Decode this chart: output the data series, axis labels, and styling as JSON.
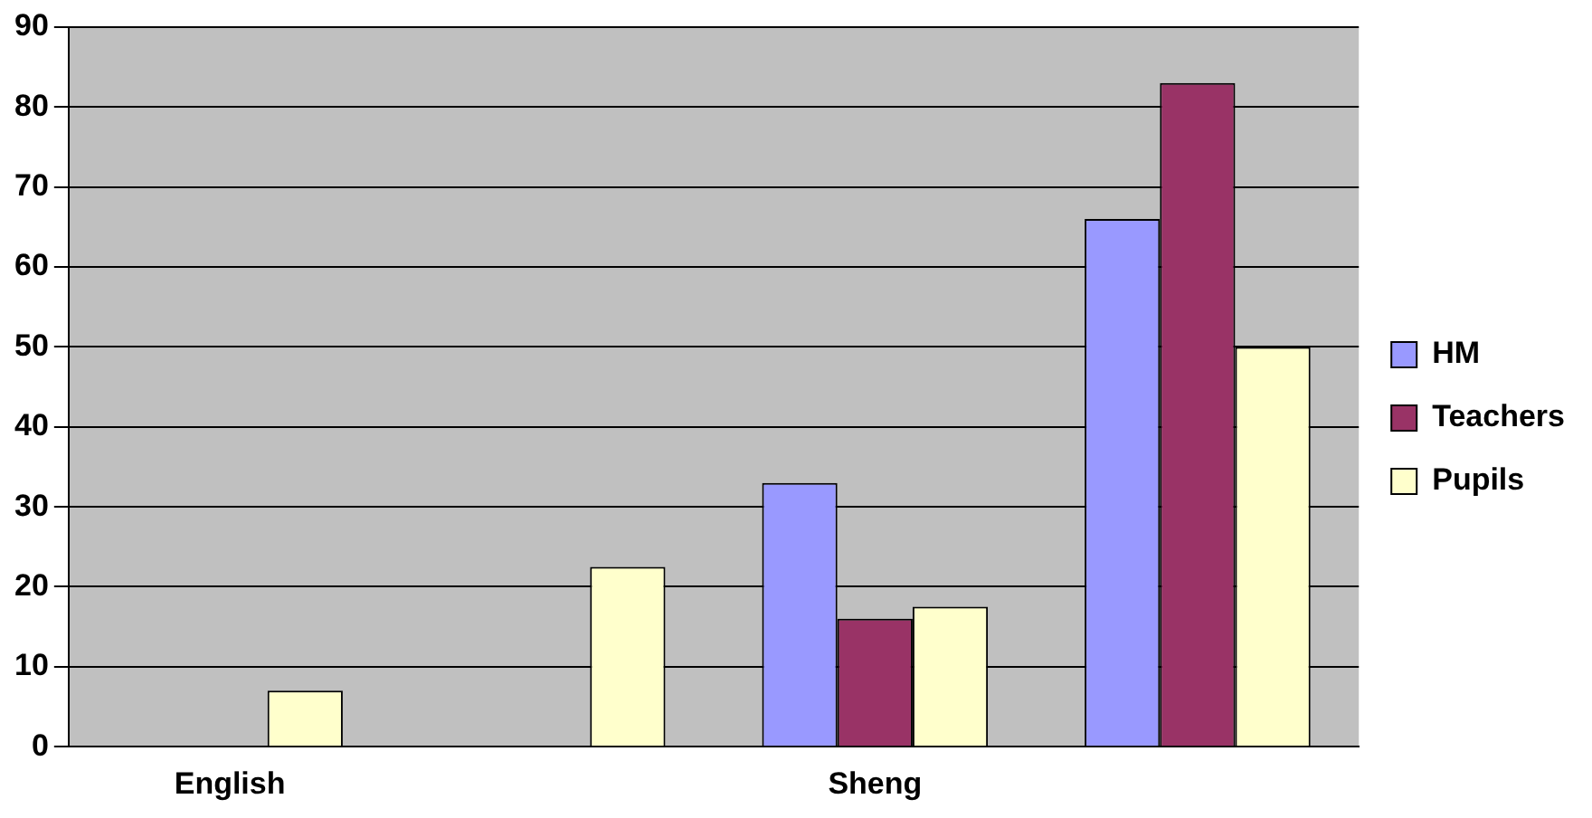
{
  "chart_data": {
    "type": "bar",
    "categories": [
      "English",
      null,
      "Sheng",
      null
    ],
    "series": [
      {
        "name": "HM",
        "color": "#9999ff",
        "values": [
          0,
          0,
          33,
          66
        ]
      },
      {
        "name": "Teachers",
        "color": "#993366",
        "values": [
          0,
          0,
          16,
          83
        ]
      },
      {
        "name": "Pupils",
        "color": "#ffffcc",
        "values": [
          7,
          22.5,
          17.5,
          50
        ]
      }
    ],
    "ylim": [
      0,
      90
    ],
    "yticks": [
      0,
      10,
      20,
      30,
      40,
      50,
      60,
      70,
      80,
      90
    ],
    "grid": "y",
    "legend": "right"
  }
}
